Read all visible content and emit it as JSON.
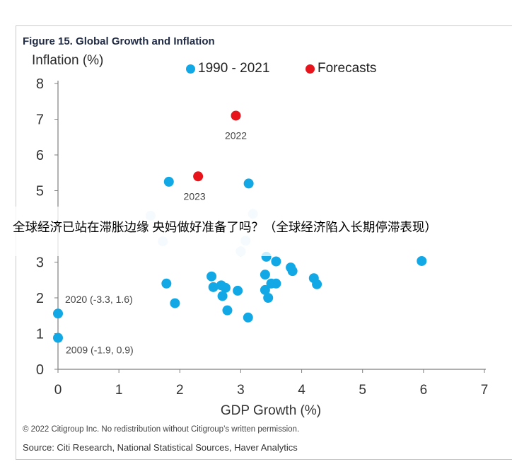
{
  "figure": {
    "title": "Figure 15. Global Growth and Inflation",
    "copyright": "© 2022 Citigroup Inc. No redistribution without Citigroup’s written permission.",
    "source": "Source: Citi Research, National Statistical Sources, Haver Analytics"
  },
  "overlay": {
    "caption": "全球经济已站在滞胀边缘  央妈做好准备了吗？（全球经济陷入长期停滞表现）"
  },
  "colors": {
    "historical": "#12a8e6",
    "historical_faded": "#cde7f5",
    "forecast": "#e8141b",
    "axis": "#7f7f7f",
    "text": "#333333"
  },
  "chart_data": {
    "type": "scatter",
    "title": "Figure 15. Global Growth and Inflation",
    "xlabel": "GDP Growth (%)",
    "ylabel": "Inflation (%)",
    "xlim": [
      0,
      7
    ],
    "ylim": [
      0,
      8
    ],
    "xticks": [
      "0",
      "1",
      "2",
      "3",
      "4",
      "5",
      "6",
      "7"
    ],
    "yticks": [
      "0",
      "1",
      "2",
      "3",
      "4",
      "5",
      "6",
      "7",
      "8"
    ],
    "grid": false,
    "legend": {
      "position": "top",
      "entries": [
        "1990 - 2021",
        "Forecasts"
      ]
    },
    "series": [
      {
        "name": "1990 - 2021",
        "points": [
          [
            1.82,
            5.25
          ],
          [
            3.13,
            5.2
          ],
          [
            3.2,
            4.35
          ],
          [
            1.52,
            4.3
          ],
          [
            3.08,
            3.6
          ],
          [
            1.72,
            3.58
          ],
          [
            3.0,
            3.3
          ],
          [
            3.42,
            3.15
          ],
          [
            3.58,
            3.02
          ],
          [
            5.97,
            3.03
          ],
          [
            3.82,
            2.85
          ],
          [
            3.85,
            2.75
          ],
          [
            2.52,
            2.6
          ],
          [
            3.4,
            2.65
          ],
          [
            4.2,
            2.55
          ],
          [
            4.25,
            2.38
          ],
          [
            1.78,
            2.4
          ],
          [
            2.68,
            2.35
          ],
          [
            2.55,
            2.3
          ],
          [
            2.75,
            2.28
          ],
          [
            3.5,
            2.4
          ],
          [
            3.58,
            2.4
          ],
          [
            2.95,
            2.2
          ],
          [
            3.4,
            2.22
          ],
          [
            2.7,
            2.05
          ],
          [
            3.45,
            2.0
          ],
          [
            1.92,
            1.85
          ],
          [
            2.78,
            1.65
          ],
          [
            3.12,
            1.45
          ],
          [
            0.0,
            1.56
          ],
          [
            0.0,
            0.88
          ]
        ]
      },
      {
        "name": "Forecasts",
        "points": [
          [
            2.92,
            7.1
          ],
          [
            2.3,
            5.4
          ]
        ]
      }
    ],
    "annotations": [
      {
        "text": "2022",
        "x": 2.92,
        "y": 7.1
      },
      {
        "text": "2023",
        "x": 2.3,
        "y": 5.4
      },
      {
        "text": "2020 (-3.3, 1.6)",
        "x": 0.0,
        "y": 1.56
      },
      {
        "text": "2009 (-1.9, 0.9)",
        "x": 0.0,
        "y": 0.88
      }
    ]
  }
}
